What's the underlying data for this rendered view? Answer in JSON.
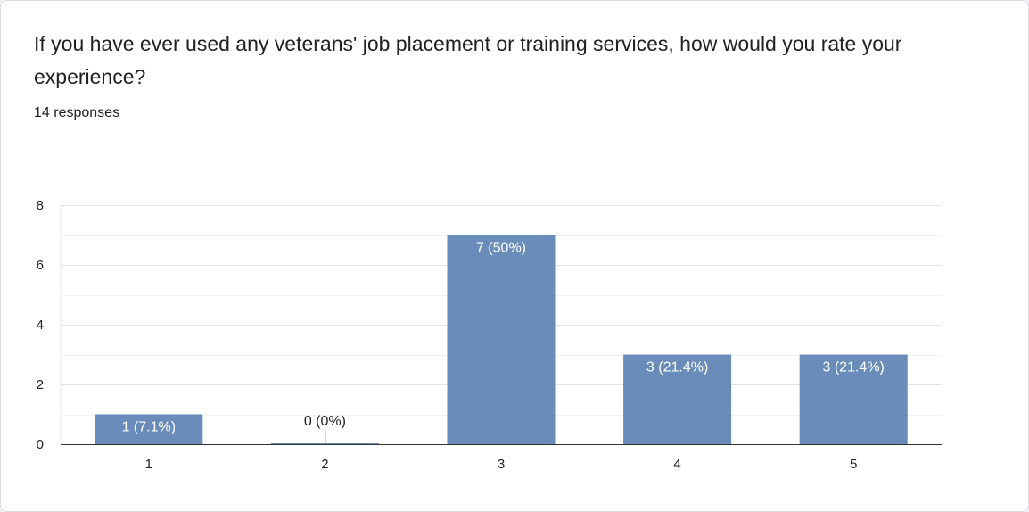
{
  "question": {
    "title": "If you have ever used any veterans' job placement or training services, how would you rate your experience?",
    "responses": "14 responses"
  },
  "colors": {
    "bar": "#6a8cba",
    "grid": "#ebebeb",
    "axis": "#333333"
  },
  "chart_data": {
    "type": "bar",
    "categories": [
      "1",
      "2",
      "3",
      "4",
      "5"
    ],
    "values": [
      1,
      0,
      7,
      3,
      3
    ],
    "data_labels": [
      "1 (7.1%)",
      "0 (0%)",
      "7 (50%)",
      "3 (21.4%)",
      "3 (21.4%)"
    ],
    "ylim": [
      0,
      8
    ],
    "yticks": [
      0,
      2,
      4,
      6,
      8
    ],
    "grid": true,
    "xlabel": "",
    "ylabel": ""
  }
}
